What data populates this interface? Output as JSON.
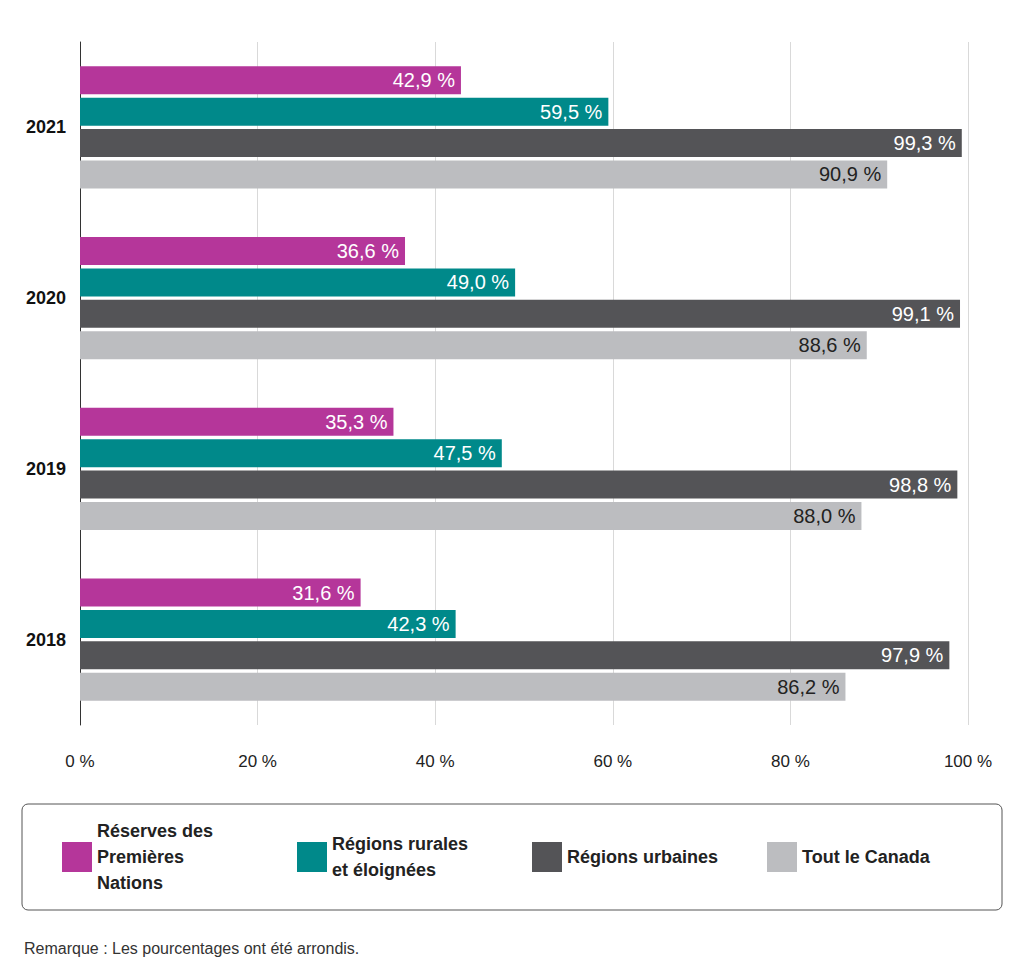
{
  "chart_data": {
    "type": "bar",
    "orientation": "horizontal",
    "categories": [
      "2021",
      "2020",
      "2019",
      "2018"
    ],
    "series": [
      {
        "name": "Réserves des Premières Nations",
        "color": "#b5369a",
        "values": [
          42.9,
          36.6,
          35.3,
          31.6
        ],
        "value_labels": [
          "42,9 %",
          "36,6 %",
          "35,3 %",
          "31,6 %"
        ]
      },
      {
        "name": "Régions rurales et éloignées",
        "color": "#00898a",
        "values": [
          59.5,
          49.0,
          47.5,
          42.3
        ],
        "value_labels": [
          "59,5 %",
          "49,0 %",
          "47,5 %",
          "42,3 %"
        ]
      },
      {
        "name": "Régions urbaines",
        "color": "#545457",
        "values": [
          99.3,
          99.1,
          98.8,
          97.9
        ],
        "value_labels": [
          "99,3 %",
          "99,1 %",
          "98,8 %",
          "97,9 %"
        ]
      },
      {
        "name": "Tout le Canada",
        "color": "#bcbdc0",
        "values": [
          90.9,
          88.6,
          88.0,
          86.2
        ],
        "value_labels": [
          "90,9 %",
          "88,6 %",
          "88,0 %",
          "86,2 %"
        ]
      }
    ],
    "xlim": [
      0,
      100
    ],
    "xticks": [
      {
        "value": 0,
        "label": "0 %"
      },
      {
        "value": 20,
        "label": "20 %"
      },
      {
        "value": 40,
        "label": "40 %"
      },
      {
        "value": 60,
        "label": "60 %"
      },
      {
        "value": 80,
        "label": "80 %"
      },
      {
        "value": 100,
        "label": "100 %"
      }
    ],
    "grid": true,
    "data_labels": true,
    "legend": "bottom",
    "annotations": [
      "Remarque : Les pourcentages ont été arrondis."
    ]
  }
}
